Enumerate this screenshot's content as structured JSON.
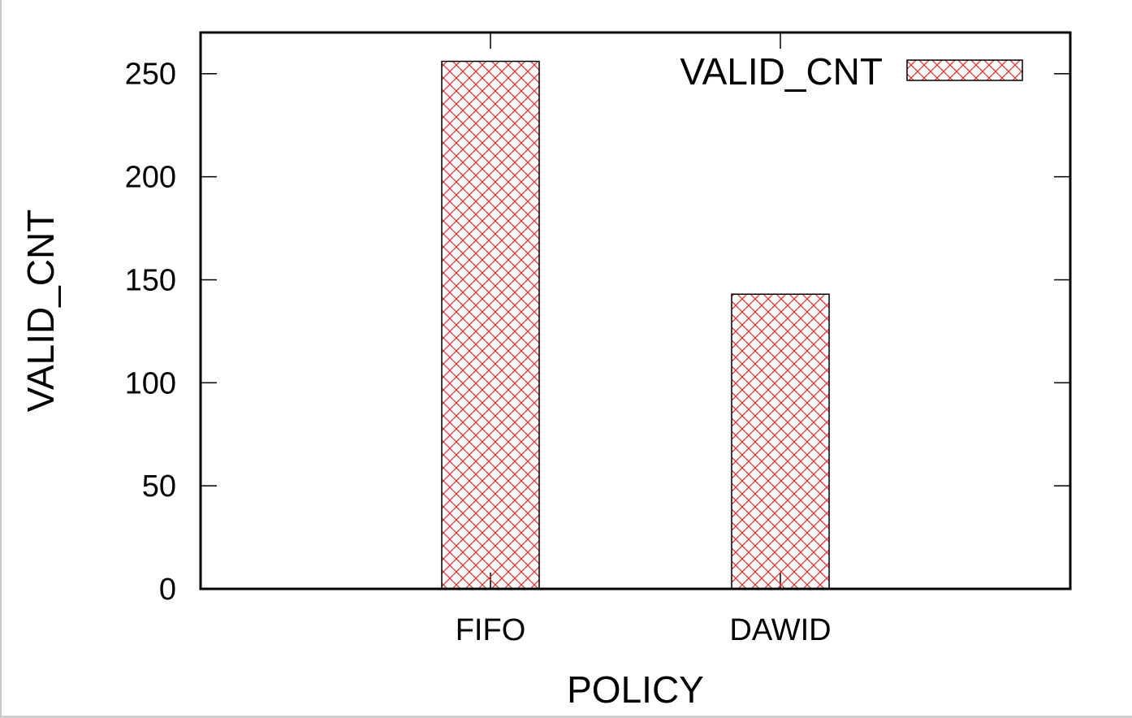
{
  "chart_data": {
    "type": "bar",
    "title": "",
    "xlabel": "POLICY",
    "ylabel": "VALID_CNT",
    "categories": [
      "FIFO",
      "DAWID"
    ],
    "series": [
      {
        "name": "VALID_CNT",
        "values": [
          256,
          143
        ],
        "color": "#e8332b",
        "pattern": "crosshatch"
      }
    ],
    "ylim": [
      0,
      270
    ],
    "yticks": [
      0,
      50,
      100,
      150,
      200,
      250
    ],
    "grid": false,
    "legend_position": "top-right"
  }
}
